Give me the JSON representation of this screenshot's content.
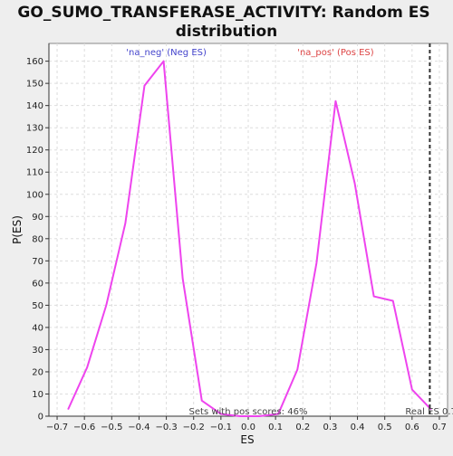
{
  "chart_data": {
    "type": "line",
    "title_line1": "GO_SUMO_TRANSFERASE_ACTIVITY: Random ES",
    "title_line2": "distribution",
    "xlabel": "ES",
    "ylabel": "P(ES)",
    "xlim": [
      -0.73,
      0.73
    ],
    "ylim": [
      0,
      168
    ],
    "x_ticks": [
      -0.7,
      -0.6,
      -0.5,
      -0.4,
      -0.3,
      -0.2,
      -0.1,
      0.0,
      0.1,
      0.2,
      0.3,
      0.4,
      0.5,
      0.6,
      0.7
    ],
    "y_ticks": [
      0,
      10,
      20,
      30,
      40,
      50,
      60,
      70,
      80,
      90,
      100,
      110,
      120,
      130,
      140,
      150,
      160
    ],
    "grid": true,
    "series": [
      {
        "color": "#ee44ee",
        "x": [
          -0.66,
          -0.59,
          -0.52,
          -0.45,
          -0.38,
          -0.31,
          -0.24,
          -0.17,
          -0.1,
          -0.03,
          0.04,
          0.11,
          0.18,
          0.25,
          0.32,
          0.39,
          0.46,
          0.53,
          0.6,
          0.67
        ],
        "y": [
          3,
          22,
          50,
          87,
          149,
          160,
          62,
          7,
          1,
          0,
          0,
          1,
          21,
          69,
          142,
          105,
          54,
          52,
          12,
          3
        ]
      }
    ],
    "real_es": {
      "value": 0.665,
      "label": "Real ES 0.7",
      "color": "#444444"
    },
    "annotations": {
      "neg": {
        "text": "'na_neg' (Neg ES)",
        "color": "#4444cc",
        "x": -0.3
      },
      "pos": {
        "text": "'na_pos' (Pos ES)",
        "color": "#dd4444",
        "x": 0.32
      },
      "sets": {
        "text": "Sets with pos scores: 46%",
        "color": "#444444",
        "x": 0.0
      }
    }
  }
}
